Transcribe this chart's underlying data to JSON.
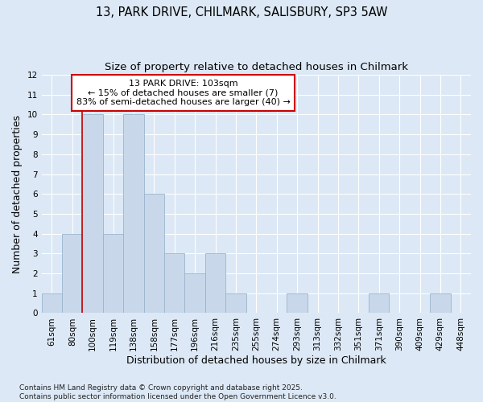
{
  "title_line1": "13, PARK DRIVE, CHILMARK, SALISBURY, SP3 5AW",
  "title_line2": "Size of property relative to detached houses in Chilmark",
  "xlabel": "Distribution of detached houses by size in Chilmark",
  "ylabel": "Number of detached properties",
  "categories": [
    "61sqm",
    "80sqm",
    "100sqm",
    "119sqm",
    "138sqm",
    "158sqm",
    "177sqm",
    "196sqm",
    "216sqm",
    "235sqm",
    "255sqm",
    "274sqm",
    "293sqm",
    "313sqm",
    "332sqm",
    "351sqm",
    "371sqm",
    "390sqm",
    "409sqm",
    "429sqm",
    "448sqm"
  ],
  "values": [
    1,
    4,
    10,
    4,
    10,
    6,
    3,
    2,
    3,
    1,
    0,
    0,
    1,
    0,
    0,
    0,
    1,
    0,
    0,
    1,
    0
  ],
  "bar_color": "#c8d8ea",
  "bar_edgecolor": "#9ab4cc",
  "highlight_line_color": "#cc0000",
  "highlight_line_index": 2,
  "annotation_text": "13 PARK DRIVE: 103sqm\n← 15% of detached houses are smaller (7)\n83% of semi-detached houses are larger (40) →",
  "annotation_box_edgecolor": "#cc0000",
  "ylim": [
    0,
    12
  ],
  "yticks": [
    0,
    1,
    2,
    3,
    4,
    5,
    6,
    7,
    8,
    9,
    10,
    11,
    12
  ],
  "background_color": "#dce8f5",
  "grid_color": "#ffffff",
  "footer_text": "Contains HM Land Registry data © Crown copyright and database right 2025.\nContains public sector information licensed under the Open Government Licence v3.0.",
  "title_fontsize": 10.5,
  "subtitle_fontsize": 9.5,
  "tick_fontsize": 7.5,
  "label_fontsize": 9,
  "annotation_fontsize": 8,
  "footer_fontsize": 6.5
}
